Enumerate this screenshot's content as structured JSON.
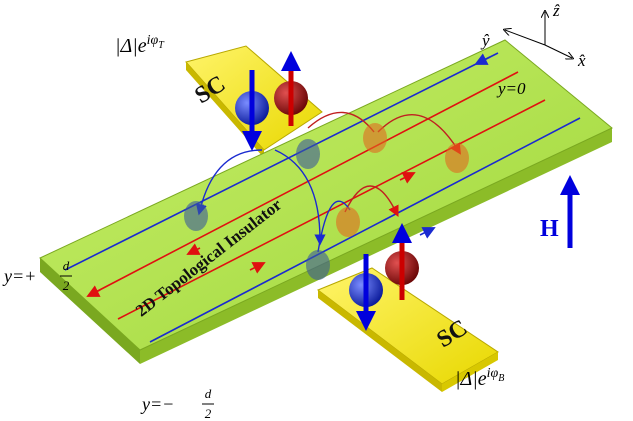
{
  "labels": {
    "top_pair": {
      "base": "|Δ|e",
      "exponent": "iφ",
      "subscript": "T"
    },
    "bottom_pair": {
      "base": "|Δ|e",
      "exponent": "iφ",
      "subscript": "B"
    },
    "sc_top": "SC",
    "sc_bottom": "SC",
    "material": "2D Topological Insulator",
    "edge_center": "y=0",
    "edge_top": {
      "prefix": "y=+",
      "numerator": "d",
      "denominator": "2"
    },
    "edge_bottom": {
      "prefix": "y=−",
      "numerator": "d",
      "denominator": "2"
    },
    "field": "H",
    "axes": {
      "x": "x̂",
      "y": "ŷ",
      "z": "ẑ"
    }
  }
}
